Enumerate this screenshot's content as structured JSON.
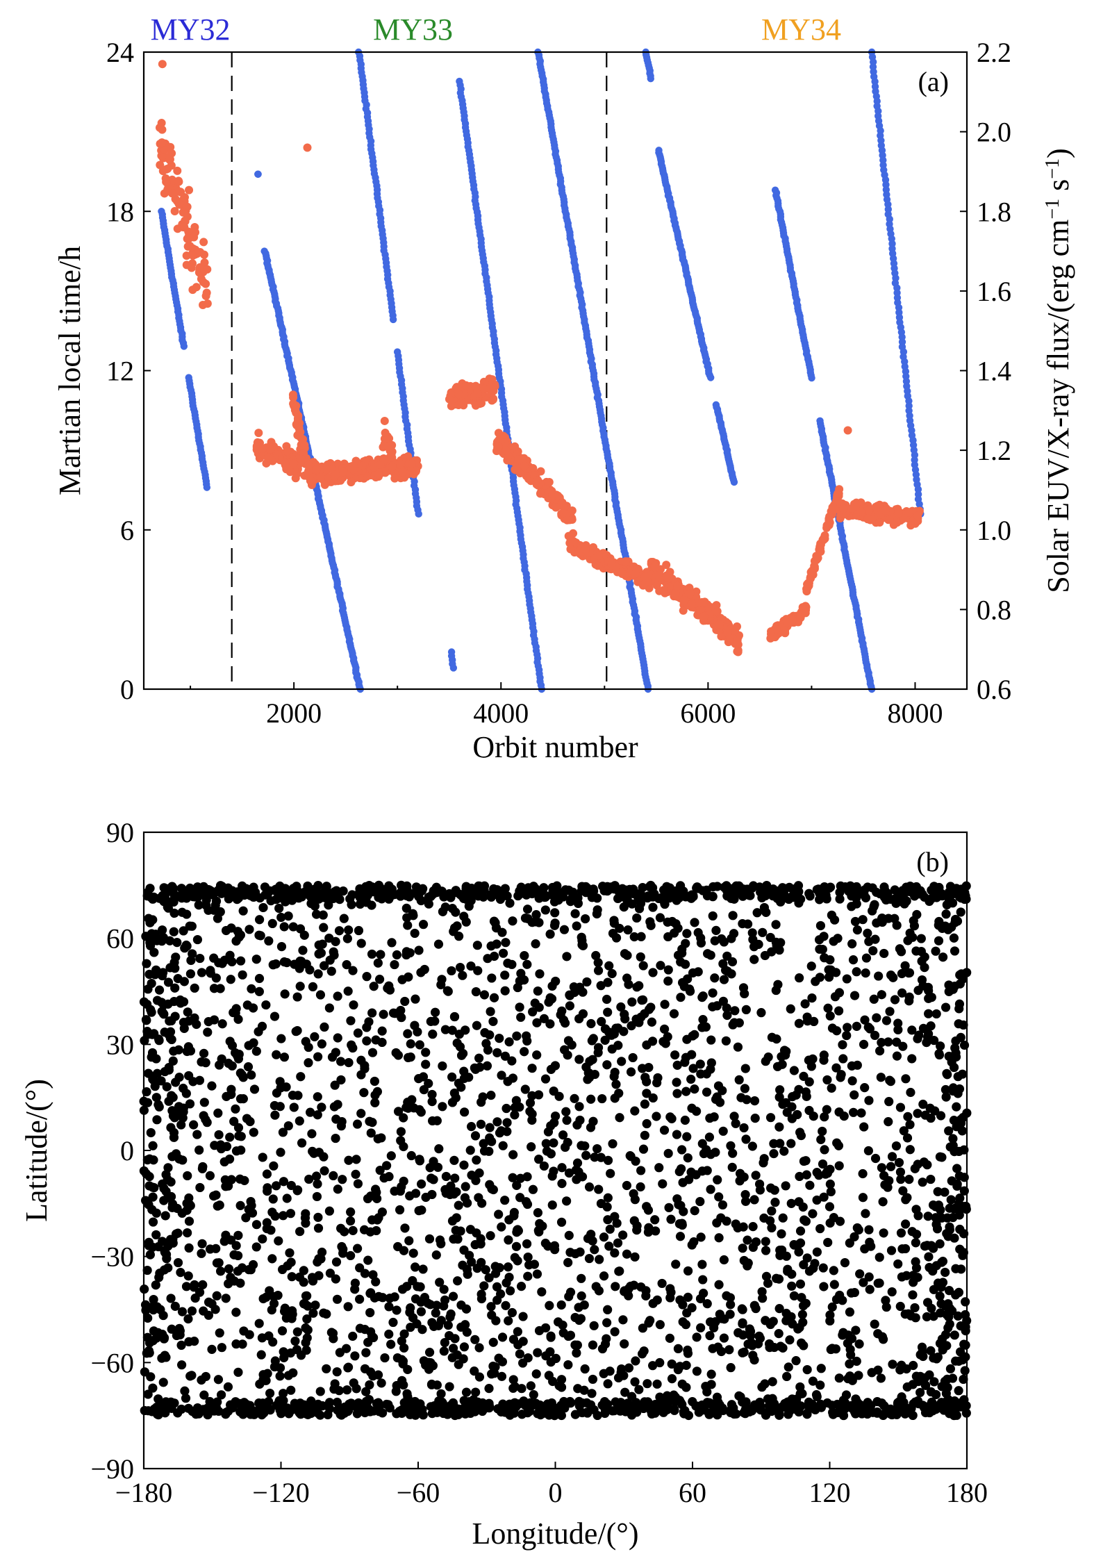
{
  "chart_data": [
    {
      "type": "scatter",
      "panel_label": "(a)",
      "xlabel": "Orbit number",
      "ylabel": "Martian local time/h",
      "y2label": "Solar EUV/X-ray flux/(erg cm⁻¹ s⁻¹)",
      "xlim": [
        550,
        8500
      ],
      "ylim": [
        0,
        24
      ],
      "y2lim": [
        0.6,
        2.2
      ],
      "xticks": [
        2000,
        4000,
        6000,
        8000
      ],
      "yticks": [
        0,
        6,
        12,
        18,
        24
      ],
      "y2ticks": [
        "0.6",
        "0.8",
        "1.0",
        "1.2",
        "1.4",
        "1.6",
        "1.8",
        "2.0",
        "2.2"
      ],
      "grid": false,
      "year_dividers": [
        1400,
        5020
      ],
      "year_labels": [
        {
          "text": "MY32",
          "x": 1000,
          "color": "#2b2bd6"
        },
        {
          "text": "MY33",
          "x": 3150,
          "color": "#2a8a2a"
        },
        {
          "text": "MY34",
          "x": 6900,
          "color": "#f0a020"
        }
      ],
      "series": [
        {
          "axis": "left",
          "color": "#4169e1",
          "description": "local time of observation, decreasing with orbit and wrapping from 0 h to 24 h",
          "segments": [
            {
              "x0": 720,
              "y0": 18.0,
              "x1": 1160,
              "y1": 7.6,
              "gaps": [
                [
                  935,
                  985
                ]
              ]
            },
            {
              "x0": 1650,
              "y0": 19.4,
              "x1": 1650,
              "y1": 19.4
            },
            {
              "x0": 1720,
              "y0": 16.5,
              "x1": 2640,
              "y1": 0.0
            },
            {
              "x0": 2630,
              "y0": 24.0,
              "x1": 3200,
              "y1": 6.6,
              "gaps": [
                [
                  2960,
                  3000
                ]
              ]
            },
            {
              "x0": 3520,
              "y0": 1.4,
              "x1": 3540,
              "y1": 0.8
            },
            {
              "x0": 3600,
              "y0": 22.9,
              "x1": 4390,
              "y1": 0.0
            },
            {
              "x0": 4360,
              "y0": 24.0,
              "x1": 5420,
              "y1": 0.0
            },
            {
              "x0": 5400,
              "y0": 24.0,
              "x1": 5450,
              "y1": 23.0
            },
            {
              "x0": 5520,
              "y0": 20.3,
              "x1": 6250,
              "y1": 7.8,
              "gaps": [
                [
                  6020,
                  6080
                ]
              ]
            },
            {
              "x0": 6650,
              "y0": 18.8,
              "x1": 7580,
              "y1": 0.0,
              "gaps": [
                [
                  7000,
                  7080
                ]
              ]
            },
            {
              "x0": 7580,
              "y0": 24.0,
              "x1": 8050,
              "y1": 6.6
            }
          ]
        },
        {
          "axis": "right",
          "color": "#f26b4a",
          "description": "solar EUV/X-ray flux",
          "clusters": [
            {
              "x0": 700,
              "x1": 1170,
              "y0": 1.98,
              "y1": 1.6,
              "spread": 0.13
            },
            {
              "x": 730,
              "y": 2.17
            },
            {
              "x0": 1640,
              "x1": 2050,
              "y0": 1.21,
              "y1": 1.16,
              "spread": 0.04
            },
            {
              "x0": 1980,
              "x1": 2130,
              "y0": 1.35,
              "y1": 1.15,
              "spread": 0.06
            },
            {
              "x": 2130,
              "y": 1.96
            },
            {
              "x0": 2130,
              "x1": 3200,
              "y0": 1.14,
              "y1": 1.16,
              "spread": 0.04
            },
            {
              "x0": 2850,
              "x1": 2950,
              "y0": 1.25,
              "y1": 1.2,
              "spread": 0.05
            },
            {
              "x0": 3500,
              "x1": 3950,
              "y0": 1.33,
              "y1": 1.35,
              "spread": 0.04
            },
            {
              "x0": 3950,
              "x1": 4700,
              "y0": 1.23,
              "y1": 1.03,
              "spread": 0.04
            },
            {
              "x0": 4650,
              "x1": 5450,
              "y0": 0.97,
              "y1": 0.87,
              "spread": 0.03
            },
            {
              "x0": 5450,
              "x1": 6300,
              "y0": 0.9,
              "y1": 0.72,
              "spread": 0.05
            },
            {
              "x0": 6600,
              "x1": 6950,
              "y0": 0.73,
              "y1": 0.8,
              "spread": 0.02
            },
            {
              "x0": 6950,
              "x1": 7270,
              "y0": 0.85,
              "y1": 1.1,
              "spread": 0.02
            },
            {
              "x0": 7270,
              "x1": 8050,
              "y0": 1.05,
              "y1": 1.03,
              "spread": 0.03
            },
            {
              "x": 7350,
              "y": 1.25
            }
          ]
        }
      ]
    },
    {
      "type": "scatter",
      "panel_label": "(b)",
      "xlabel": "Longitude/(°)",
      "ylabel": "Latitude/(°)",
      "xlim": [
        -180,
        180
      ],
      "ylim": [
        -90,
        90
      ],
      "xticks": [
        -180,
        -120,
        -60,
        0,
        60,
        120,
        180
      ],
      "xtick_labels": [
        "−180",
        "−120",
        "−60",
        "0",
        "60",
        "120",
        "180"
      ],
      "yticks": [
        -90,
        -60,
        -30,
        0,
        30,
        60,
        90
      ],
      "ytick_labels": [
        "−90",
        "−60",
        "−30",
        "0",
        "30",
        "60",
        "90"
      ],
      "grid": false,
      "color": "#000000",
      "description": "observation locations densely distributed between about 75°S and 75°N at all longitudes",
      "lat_range": [
        -75,
        75
      ],
      "approx_points": 3600
    }
  ]
}
